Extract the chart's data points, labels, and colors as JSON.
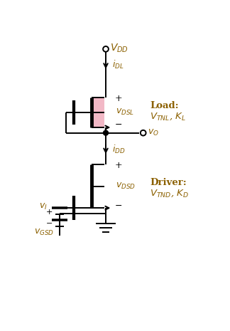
{
  "bg_color": "#ffffff",
  "line_color": "#000000",
  "text_color": "#8B6000",
  "fig_width": 3.24,
  "fig_height": 4.65,
  "dpi": 100,
  "vdd_label": "$V_{DD}$",
  "idl_label": "$i_{DL}$",
  "vdsl_label": "$v_{DSL}$",
  "vo_label": "$v_O$",
  "idd_label": "$i_{DD}$",
  "vdsd_label": "$v_{DSD}$",
  "vi_label": "$v_I$",
  "vgsd_label": "$v_{GSD}$",
  "load_label1": "Load:",
  "load_label2": "$V_{TNL}$, $K_L$",
  "driver_label1": "Driver:",
  "driver_label2": "$V_{TND}$, $K_D$",
  "plus_label": "+",
  "minus_label": "−",
  "mosfet_channel_color": "#f2b8c6",
  "node_color": "#000000"
}
